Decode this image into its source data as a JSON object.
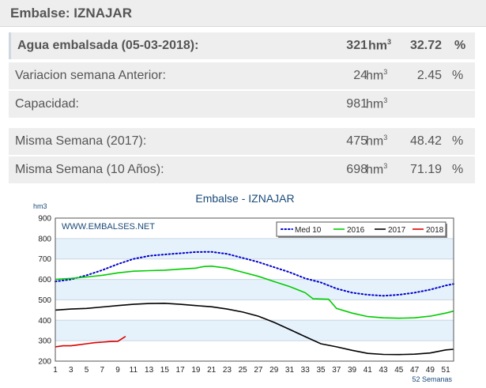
{
  "header": {
    "title": "Embalse: IZNAJAR"
  },
  "rows": [
    {
      "label": "Agua embalsada (05-03-2018):",
      "value": "321",
      "unit": "hm",
      "pct": "32.72",
      "pct_sign": "%"
    },
    {
      "label": "Variacion semana Anterior:",
      "value": "24",
      "unit": "hm",
      "pct": "2.45",
      "pct_sign": "%"
    },
    {
      "label": "Capacidad:",
      "value": "981",
      "unit": "hm",
      "pct": "",
      "pct_sign": ""
    },
    {
      "label": "Misma Semana (2017):",
      "value": "475",
      "unit": "hm",
      "pct": "48.42",
      "pct_sign": "%"
    },
    {
      "label": "Misma Semana (10 Años):",
      "value": "698",
      "unit": "hm",
      "pct": "71.19",
      "pct_sign": "%"
    }
  ],
  "unit_superscript": "3",
  "chart_data": {
    "type": "line",
    "title": "Embalse - IZNAJAR",
    "ylabel": "hm3",
    "xlabel": "52 Semanas",
    "watermark": "WWW.EMBALSES.NET",
    "ylim": [
      200,
      900
    ],
    "yticks": [
      200,
      300,
      400,
      500,
      600,
      700,
      800,
      900
    ],
    "xlim": [
      1,
      52
    ],
    "xticks": [
      1,
      3,
      5,
      7,
      9,
      11,
      13,
      15,
      17,
      19,
      21,
      23,
      25,
      27,
      29,
      31,
      33,
      35,
      37,
      39,
      41,
      43,
      45,
      47,
      49,
      51
    ],
    "legend_position": "top-right",
    "series": [
      {
        "name": "Med 10",
        "color": "#0000cc",
        "style": "dotted",
        "points": [
          [
            1,
            590
          ],
          [
            3,
            600
          ],
          [
            5,
            620
          ],
          [
            7,
            645
          ],
          [
            9,
            675
          ],
          [
            11,
            700
          ],
          [
            13,
            715
          ],
          [
            15,
            722
          ],
          [
            17,
            728
          ],
          [
            19,
            734
          ],
          [
            21,
            735
          ],
          [
            23,
            725
          ],
          [
            25,
            705
          ],
          [
            27,
            685
          ],
          [
            29,
            660
          ],
          [
            31,
            635
          ],
          [
            33,
            605
          ],
          [
            35,
            585
          ],
          [
            37,
            555
          ],
          [
            39,
            535
          ],
          [
            41,
            525
          ],
          [
            43,
            520
          ],
          [
            45,
            525
          ],
          [
            47,
            535
          ],
          [
            49,
            550
          ],
          [
            51,
            570
          ],
          [
            52,
            578
          ]
        ]
      },
      {
        "name": "2016",
        "color": "#00cc00",
        "style": "solid",
        "points": [
          [
            1,
            600
          ],
          [
            3,
            605
          ],
          [
            5,
            612
          ],
          [
            7,
            620
          ],
          [
            9,
            632
          ],
          [
            11,
            640
          ],
          [
            13,
            643
          ],
          [
            15,
            645
          ],
          [
            17,
            650
          ],
          [
            19,
            655
          ],
          [
            20,
            663
          ],
          [
            21,
            665
          ],
          [
            23,
            655
          ],
          [
            25,
            635
          ],
          [
            27,
            615
          ],
          [
            29,
            590
          ],
          [
            31,
            565
          ],
          [
            33,
            535
          ],
          [
            34,
            505
          ],
          [
            36,
            503
          ],
          [
            37,
            458
          ],
          [
            39,
            435
          ],
          [
            41,
            418
          ],
          [
            43,
            412
          ],
          [
            45,
            410
          ],
          [
            47,
            412
          ],
          [
            49,
            420
          ],
          [
            51,
            435
          ],
          [
            52,
            445
          ]
        ]
      },
      {
        "name": "2017",
        "color": "#000000",
        "style": "solid",
        "points": [
          [
            1,
            450
          ],
          [
            3,
            455
          ],
          [
            5,
            458
          ],
          [
            7,
            465
          ],
          [
            9,
            472
          ],
          [
            11,
            478
          ],
          [
            13,
            482
          ],
          [
            15,
            483
          ],
          [
            17,
            478
          ],
          [
            19,
            472
          ],
          [
            21,
            466
          ],
          [
            23,
            455
          ],
          [
            25,
            440
          ],
          [
            27,
            420
          ],
          [
            29,
            390
          ],
          [
            31,
            355
          ],
          [
            33,
            320
          ],
          [
            35,
            285
          ],
          [
            37,
            270
          ],
          [
            39,
            253
          ],
          [
            41,
            238
          ],
          [
            43,
            233
          ],
          [
            45,
            232
          ],
          [
            47,
            234
          ],
          [
            49,
            240
          ],
          [
            51,
            255
          ],
          [
            52,
            258
          ]
        ]
      },
      {
        "name": "2018",
        "color": "#dd0000",
        "style": "solid",
        "points": [
          [
            1,
            270
          ],
          [
            2,
            275
          ],
          [
            3,
            275
          ],
          [
            4,
            280
          ],
          [
            5,
            285
          ],
          [
            6,
            290
          ],
          [
            7,
            293
          ],
          [
            8,
            296
          ],
          [
            9,
            297
          ],
          [
            10,
            321
          ]
        ]
      }
    ]
  }
}
